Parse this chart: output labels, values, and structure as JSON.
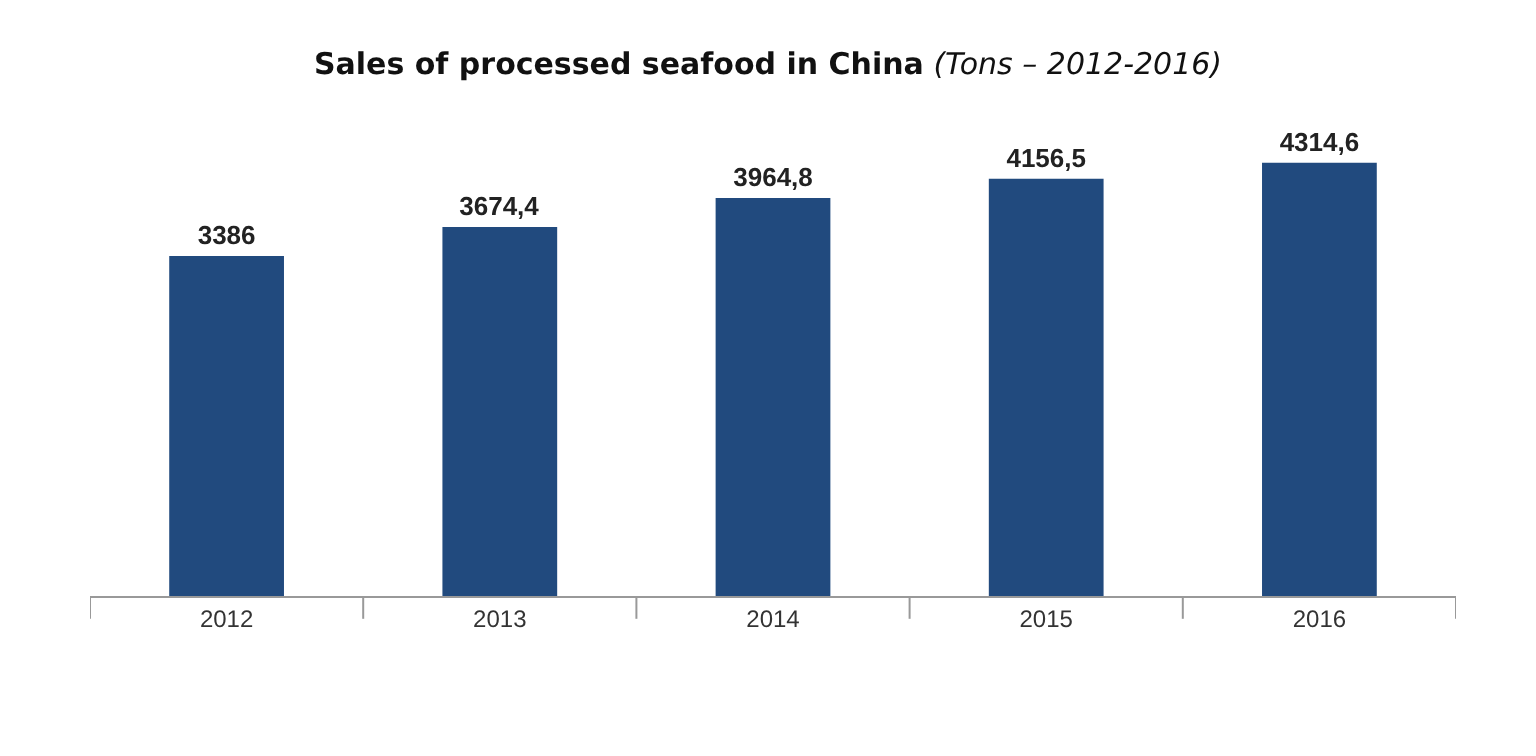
{
  "chart_data": {
    "type": "bar",
    "title": "Sales of processed seafood in China",
    "subtitle": "(Tons – 2012-2016)",
    "categories": [
      "2012",
      "2013",
      "2014",
      "2015",
      "2016"
    ],
    "values": [
      3386,
      3674.4,
      3964.8,
      4156.5,
      4314.6
    ],
    "value_labels": [
      "3386",
      "3674,4",
      "3964,8",
      "4156,5",
      "4314,6"
    ],
    "color": "#214a7e",
    "legend": false
  }
}
